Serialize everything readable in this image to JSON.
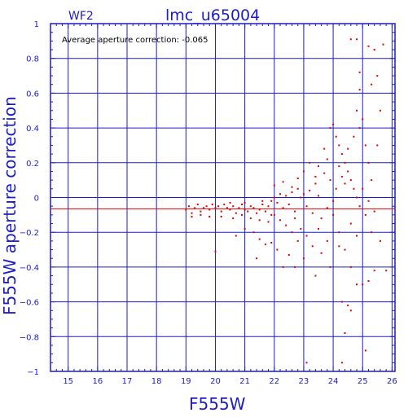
{
  "chart_data": {
    "type": "scatter",
    "chip_label": "WF2",
    "title": "lmc_u65004",
    "xlabel": "F555W",
    "ylabel": "F555W aperture correction",
    "annotation": "Average aperture correction:  -0.065",
    "xlim": [
      14.4,
      26.1
    ],
    "ylim": [
      -1,
      1
    ],
    "x_ticks": [
      "15",
      "16",
      "17",
      "18",
      "19",
      "20",
      "21",
      "22",
      "23",
      "24",
      "25",
      "26"
    ],
    "y_ticks": [
      "1",
      "0.8",
      "0.6",
      "0.4",
      "0.2",
      "0",
      "−0.2",
      "−0.4",
      "−0.6",
      "−0.8",
      "−1"
    ],
    "grid": true,
    "average_line": -0.065,
    "colors": {
      "axes": "#1c1cc8",
      "points": "#e00000",
      "average_line": "#e00000"
    },
    "points": [
      [
        19.0,
        -0.07
      ],
      [
        19.1,
        -0.05
      ],
      [
        19.2,
        -0.09
      ],
      [
        19.3,
        -0.06
      ],
      [
        19.4,
        -0.04
      ],
      [
        19.5,
        -0.08
      ],
      [
        19.6,
        -0.06
      ],
      [
        19.7,
        -0.05
      ],
      [
        19.8,
        -0.07
      ],
      [
        19.9,
        -0.04
      ],
      [
        19.2,
        -0.11
      ],
      [
        19.5,
        -0.1
      ],
      [
        19.8,
        -0.11
      ],
      [
        20.0,
        -0.06
      ],
      [
        20.1,
        -0.05
      ],
      [
        20.2,
        -0.08
      ],
      [
        20.3,
        -0.04
      ],
      [
        20.4,
        -0.06
      ],
      [
        20.5,
        -0.07
      ],
      [
        20.6,
        -0.05
      ],
      [
        20.7,
        -0.09
      ],
      [
        20.8,
        -0.06
      ],
      [
        20.9,
        -0.04
      ],
      [
        21.0,
        -0.07
      ],
      [
        21.1,
        -0.08
      ],
      [
        21.2,
        -0.05
      ],
      [
        21.3,
        -0.06
      ],
      [
        21.4,
        -0.09
      ],
      [
        21.5,
        -0.07
      ],
      [
        21.6,
        -0.04
      ],
      [
        21.7,
        -0.08
      ],
      [
        21.8,
        -0.05
      ],
      [
        21.9,
        -0.1
      ],
      [
        20.2,
        -0.11
      ],
      [
        20.6,
        -0.12
      ],
      [
        20.9,
        -0.1
      ],
      [
        21.2,
        -0.12
      ],
      [
        21.5,
        -0.13
      ],
      [
        21.8,
        -0.14
      ],
      [
        20.0,
        -0.31
      ],
      [
        20.7,
        -0.22
      ],
      [
        21.0,
        -0.18
      ],
      [
        21.3,
        -0.2
      ],
      [
        21.5,
        -0.24
      ],
      [
        21.7,
        -0.27
      ],
      [
        21.9,
        -0.26
      ],
      [
        21.4,
        -0.35
      ],
      [
        20.5,
        -0.03
      ],
      [
        21.0,
        -0.03
      ],
      [
        21.6,
        -0.02
      ],
      [
        21.9,
        -0.02
      ],
      [
        22.0,
        0.0
      ],
      [
        22.1,
        -0.03
      ],
      [
        22.2,
        0.02
      ],
      [
        22.3,
        -0.06
      ],
      [
        22.4,
        0.01
      ],
      [
        22.5,
        -0.04
      ],
      [
        22.6,
        0.03
      ],
      [
        22.7,
        -0.08
      ],
      [
        22.8,
        0.05
      ],
      [
        22.9,
        0.0
      ],
      [
        22.0,
        -0.1
      ],
      [
        22.2,
        -0.13
      ],
      [
        22.4,
        -0.16
      ],
      [
        22.6,
        -0.2
      ],
      [
        22.8,
        -0.25
      ],
      [
        22.1,
        -0.3
      ],
      [
        22.3,
        -0.4
      ],
      [
        22.5,
        -0.33
      ],
      [
        22.7,
        -0.12
      ],
      [
        22.9,
        -0.18
      ],
      [
        22.0,
        0.07
      ],
      [
        22.3,
        0.09
      ],
      [
        22.6,
        0.06
      ],
      [
        22.8,
        0.11
      ],
      [
        23.0,
        0.02
      ],
      [
        23.1,
        -0.05
      ],
      [
        23.2,
        0.04
      ],
      [
        23.3,
        -0.09
      ],
      [
        23.4,
        0.08
      ],
      [
        23.5,
        0.01
      ],
      [
        23.6,
        -0.12
      ],
      [
        23.7,
        0.14
      ],
      [
        23.8,
        -0.06
      ],
      [
        23.9,
        0.1
      ],
      [
        23.0,
        0.15
      ],
      [
        23.2,
        0.2
      ],
      [
        23.4,
        0.12
      ],
      [
        23.1,
        -0.22
      ],
      [
        23.3,
        -0.28
      ],
      [
        23.5,
        -0.18
      ],
      [
        23.6,
        -0.32
      ],
      [
        23.8,
        -0.25
      ],
      [
        23.9,
        -0.4
      ],
      [
        23.4,
        -0.45
      ],
      [
        23.0,
        -0.35
      ],
      [
        23.7,
        0.28
      ],
      [
        23.9,
        0.4
      ],
      [
        23.8,
        0.22
      ],
      [
        23.5,
        0.18
      ],
      [
        24.0,
        0.42
      ],
      [
        24.1,
        0.35
      ],
      [
        24.2,
        0.3
      ],
      [
        24.3,
        0.25
      ],
      [
        24.4,
        0.2
      ],
      [
        24.5,
        0.15
      ],
      [
        24.6,
        0.1
      ],
      [
        24.7,
        0.05
      ],
      [
        24.8,
        0.0
      ],
      [
        24.9,
        -0.05
      ],
      [
        24.0,
        -0.1
      ],
      [
        24.2,
        -0.2
      ],
      [
        24.4,
        -0.3
      ],
      [
        24.6,
        -0.4
      ],
      [
        24.8,
        -0.5
      ],
      [
        24.3,
        -0.6
      ],
      [
        24.5,
        -0.62
      ],
      [
        24.6,
        -0.65
      ],
      [
        24.4,
        -0.78
      ],
      [
        24.3,
        -0.95
      ],
      [
        24.1,
        0.05
      ],
      [
        24.3,
        0.12
      ],
      [
        24.5,
        0.28
      ],
      [
        24.7,
        0.35
      ],
      [
        24.9,
        0.4
      ],
      [
        24.8,
        0.5
      ],
      [
        24.9,
        0.62
      ],
      [
        24.9,
        0.72
      ],
      [
        24.8,
        0.91
      ],
      [
        24.6,
        0.91
      ],
      [
        24.2,
        0.18
      ],
      [
        24.4,
        0.08
      ],
      [
        24.0,
        -0.02
      ],
      [
        24.6,
        -0.15
      ],
      [
        24.8,
        -0.22
      ],
      [
        24.2,
        -0.28
      ],
      [
        25.0,
        0.45
      ],
      [
        25.1,
        0.3
      ],
      [
        25.2,
        0.2
      ],
      [
        25.3,
        0.1
      ],
      [
        25.1,
        -0.1
      ],
      [
        25.3,
        -0.2
      ],
      [
        25.2,
        -0.48
      ],
      [
        25.0,
        -0.5
      ],
      [
        25.4,
        -0.42
      ],
      [
        25.1,
        -0.88
      ],
      [
        25.2,
        0.87
      ],
      [
        25.4,
        0.85
      ],
      [
        25.5,
        0.7
      ],
      [
        25.6,
        0.5
      ],
      [
        25.7,
        0.88
      ],
      [
        25.3,
        0.65
      ],
      [
        25.5,
        0.3
      ],
      [
        25.0,
        0.05
      ],
      [
        25.2,
        -0.02
      ],
      [
        25.4,
        -0.08
      ],
      [
        25.6,
        -0.25
      ],
      [
        25.8,
        -0.42
      ],
      [
        23.1,
        -0.95
      ],
      [
        22.7,
        -0.4
      ]
    ]
  }
}
